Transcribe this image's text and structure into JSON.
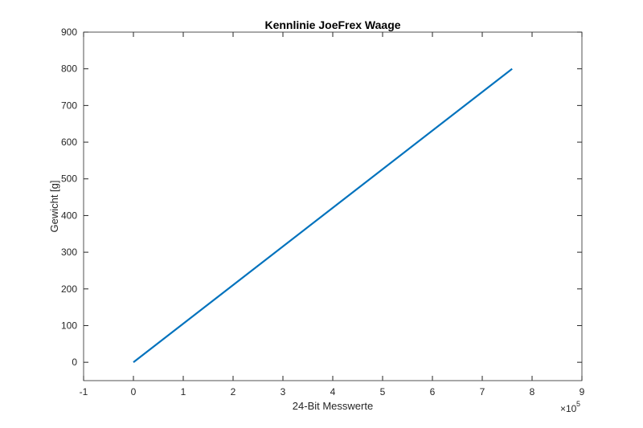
{
  "chart_data": {
    "type": "line",
    "title": "Kennlinie JoeFrex Waage",
    "x_label": "24-Bit Messwerte",
    "y_label": "Gewicht [g]",
    "x_multiplier": "×10",
    "x_multiplier_exponent": "5",
    "x": [
      0,
      7.6
    ],
    "series": [
      {
        "name": "Kennlinie",
        "color": "#0072bd",
        "values": [
          0,
          800
        ]
      }
    ],
    "xlim": [
      -1,
      9
    ],
    "xticks": [
      -1,
      0,
      1,
      2,
      3,
      4,
      5,
      6,
      7,
      8,
      9
    ],
    "ylim": [
      -50,
      900
    ],
    "yticks": [
      0,
      100,
      200,
      300,
      400,
      500,
      600,
      700,
      800,
      900
    ],
    "grid": false,
    "legend": false
  }
}
